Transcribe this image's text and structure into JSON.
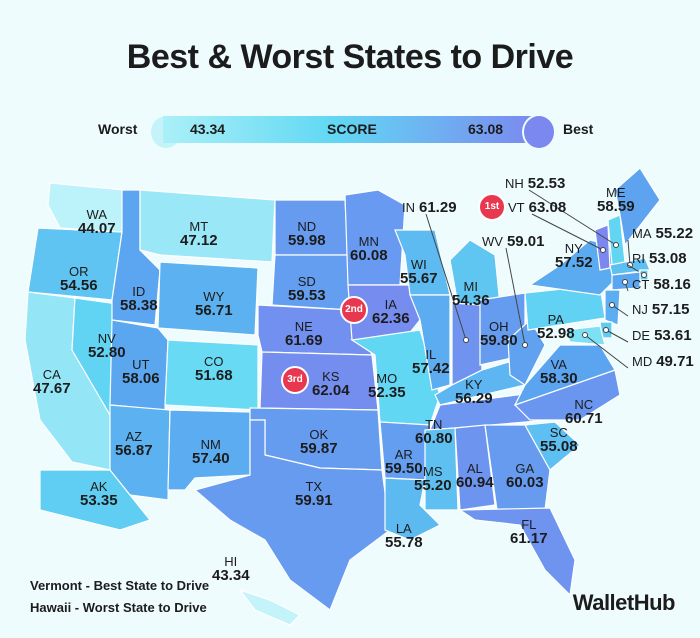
{
  "title": "Best & Worst States to Drive",
  "legend": {
    "worst_label": "Worst",
    "best_label": "Best",
    "min": "43.34",
    "max": "63.08",
    "center_label": "SCORE",
    "min_color": "#c4f4fa",
    "max_color": "#7b88ef"
  },
  "states": [
    {
      "abbr": "WA",
      "score": "44.07"
    },
    {
      "abbr": "OR",
      "score": "54.56"
    },
    {
      "abbr": "CA",
      "score": "47.67"
    },
    {
      "abbr": "NV",
      "score": "52.80"
    },
    {
      "abbr": "ID",
      "score": "58.38"
    },
    {
      "abbr": "MT",
      "score": "47.12"
    },
    {
      "abbr": "WY",
      "score": "56.71"
    },
    {
      "abbr": "UT",
      "score": "58.06"
    },
    {
      "abbr": "CO",
      "score": "51.68"
    },
    {
      "abbr": "AZ",
      "score": "56.87"
    },
    {
      "abbr": "NM",
      "score": "57.40"
    },
    {
      "abbr": "ND",
      "score": "59.98"
    },
    {
      "abbr": "SD",
      "score": "59.53"
    },
    {
      "abbr": "NE",
      "score": "61.69"
    },
    {
      "abbr": "KS",
      "score": "62.04"
    },
    {
      "abbr": "OK",
      "score": "59.87"
    },
    {
      "abbr": "TX",
      "score": "59.91"
    },
    {
      "abbr": "MN",
      "score": "60.08"
    },
    {
      "abbr": "IA",
      "score": "62.36"
    },
    {
      "abbr": "MO",
      "score": "52.35"
    },
    {
      "abbr": "AR",
      "score": "59.50"
    },
    {
      "abbr": "LA",
      "score": "55.78"
    },
    {
      "abbr": "WI",
      "score": "55.67"
    },
    {
      "abbr": "IL",
      "score": "57.42"
    },
    {
      "abbr": "MI",
      "score": "54.36"
    },
    {
      "abbr": "IN",
      "score": "61.29"
    },
    {
      "abbr": "OH",
      "score": "59.80"
    },
    {
      "abbr": "KY",
      "score": "56.29"
    },
    {
      "abbr": "TN",
      "score": "60.80"
    },
    {
      "abbr": "MS",
      "score": "55.20"
    },
    {
      "abbr": "AL",
      "score": "60.94"
    },
    {
      "abbr": "GA",
      "score": "60.03"
    },
    {
      "abbr": "FL",
      "score": "61.17"
    },
    {
      "abbr": "SC",
      "score": "55.08"
    },
    {
      "abbr": "NC",
      "score": "60.71"
    },
    {
      "abbr": "VA",
      "score": "58.30"
    },
    {
      "abbr": "WV",
      "score": "59.01"
    },
    {
      "abbr": "PA",
      "score": "52.98"
    },
    {
      "abbr": "NY",
      "score": "57.52"
    },
    {
      "abbr": "VT",
      "score": "63.08"
    },
    {
      "abbr": "NH",
      "score": "52.53"
    },
    {
      "abbr": "ME",
      "score": "58.59"
    },
    {
      "abbr": "MA",
      "score": "55.22"
    },
    {
      "abbr": "RI",
      "score": "53.08"
    },
    {
      "abbr": "CT",
      "score": "58.16"
    },
    {
      "abbr": "NJ",
      "score": "57.15"
    },
    {
      "abbr": "DE",
      "score": "53.61"
    },
    {
      "abbr": "MD",
      "score": "49.71"
    },
    {
      "abbr": "AK",
      "score": "53.35"
    },
    {
      "abbr": "HI",
      "score": "43.34"
    }
  ],
  "badges": [
    {
      "state": "VT",
      "rank": "1st"
    },
    {
      "state": "IA",
      "rank": "2nd"
    },
    {
      "state": "KS",
      "rank": "3rd"
    }
  ],
  "footer": {
    "best": "Vermont - Best State to Drive",
    "worst": "Hawaii - Worst State to Drive"
  },
  "brand": "WalletHub"
}
